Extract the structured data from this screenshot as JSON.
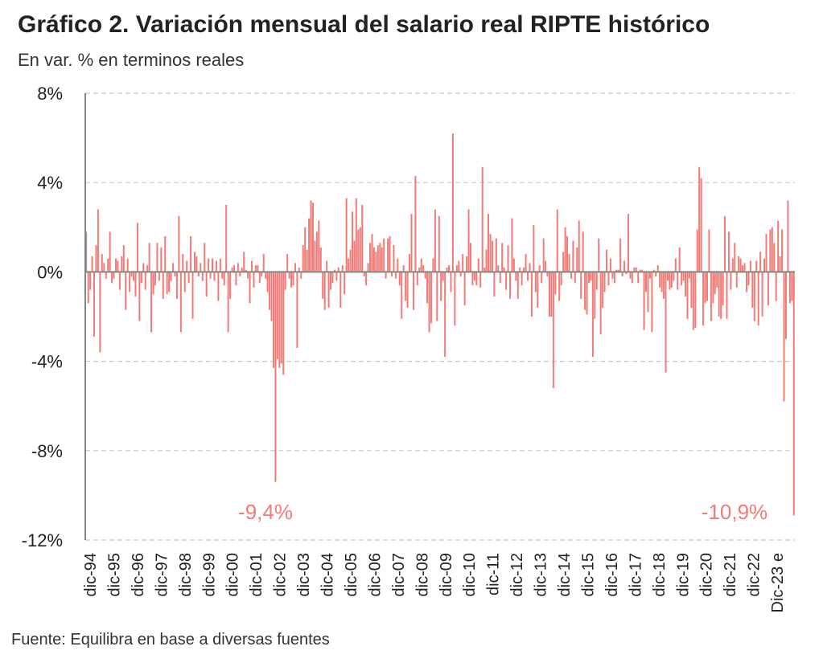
{
  "chart_data": {
    "type": "bar",
    "title": "Gráfico 2. Variación mensual del salario real RIPTE histórico",
    "subtitle": "En var. % en terminos reales",
    "source": "Fuente: Equilibra en base a diversas fuentes",
    "ylim": [
      -12,
      8
    ],
    "yticks": [
      {
        "value": 8,
        "label": "8%"
      },
      {
        "value": 4,
        "label": "4%"
      },
      {
        "value": 0,
        "label": "0%"
      },
      {
        "value": -4,
        "label": "-4%"
      },
      {
        "value": -8,
        "label": "-8%"
      },
      {
        "value": -12,
        "label": "-12%"
      }
    ],
    "grid": true,
    "bar_color": "#f47a76",
    "axis_color": "#7a8a86",
    "grid_color": "#c8c8c8",
    "xtick_labels": [
      "dic-94",
      "dic-95",
      "dic-96",
      "dic-97",
      "dic-98",
      "dic-99",
      "dic-00",
      "dic-01",
      "dic-02",
      "dic-03",
      "dic-04",
      "dic-05",
      "dic-06",
      "dic-07",
      "dic-08",
      "dic-09",
      "dic-10",
      "dic-11",
      "dic-12",
      "dic-13",
      "dic-14",
      "dic-15",
      "dic-16",
      "dic-17",
      "dic-18",
      "dic-19",
      "dic-20",
      "dic-21",
      "dic-22",
      "Dic-23 e"
    ],
    "series": [
      {
        "values": [
          1.8,
          -1.4,
          -0.8,
          0.7,
          -2.9,
          1.2,
          2.8,
          -3.6,
          0.8,
          0.4,
          -0.3,
          0.6,
          1.8,
          -0.5,
          -0.3,
          0.6,
          0.5,
          -0.8,
          0.7,
          1.2,
          -1.7,
          0.6,
          -0.9,
          -0.2,
          -0.4,
          -1.1,
          2.2,
          -2.2,
          -0.5,
          0.4,
          -0.8,
          0.3,
          1.3,
          -2.7,
          -1.0,
          -0.6,
          1.3,
          -0.4,
          1.1,
          -1.2,
          1.6,
          -1.0,
          -0.9,
          -0.4,
          0.4,
          -0.2,
          -1.2,
          2.5,
          -2.7,
          0.8,
          -0.9,
          0.5,
          -0.5,
          1.6,
          -2.1,
          0.9,
          0.7,
          -0.2,
          0.4,
          -0.4,
          1.3,
          -1.1,
          0.6,
          -0.3,
          0.6,
          -0.4,
          0.5,
          -1.3,
          0.6,
          -0.3,
          -0.6,
          3.0,
          -2.7,
          -1.2,
          0.2,
          0.3,
          -0.6,
          0.4,
          -0.2,
          0.2,
          0.9,
          0.1,
          -0.3,
          -1.4,
          0.5,
          -0.7,
          0.3,
          0.3,
          -0.5,
          -0.2,
          0.8,
          -0.3,
          -0.9,
          -1.7,
          -2.2,
          -4.3,
          -9.4,
          -3.9,
          -4.3,
          -4.1,
          -4.6,
          -0.8,
          0.8,
          -0.3,
          -0.7,
          -0.6,
          0.4,
          -3.4,
          0.2,
          -0.3,
          1.2,
          2.0,
          1.0,
          2.4,
          3.2,
          3.1,
          1.4,
          1.8,
          2.3,
          1.1,
          -1.2,
          -1.7,
          0.5,
          -1.6,
          -0.8,
          -0.5,
          0.1,
          -0.4,
          0.2,
          -1.6,
          0.3,
          -1.0,
          3.3,
          0.6,
          1.0,
          2.7,
          1.4,
          3.3,
          1.9,
          2.0,
          3.0,
          -0.2,
          -0.6,
          0.4,
          1.3,
          1.7,
          1.1,
          0.9,
          1.2,
          1.3,
          1.1,
          1.5,
          -0.3,
          1.5,
          1.6,
          -0.2,
          1.2,
          -0.3,
          0.6,
          -0.6,
          -2.1,
          0.3,
          -1.3,
          -1.6,
          0.8,
          2.6,
          -1.7,
          4.3,
          -0.6,
          0.2,
          0.6,
          0.3,
          -0.3,
          -1.4,
          -2.7,
          -2.3,
          0.6,
          2.8,
          -2.2,
          2.5,
          -1.3,
          -0.4,
          -3.8,
          0.2,
          0.3,
          -0.9,
          6.2,
          -2.4,
          0.3,
          0.5,
          -0.2,
          0.8,
          -1.5,
          0.7,
          2.8,
          1.3,
          -0.6,
          -0.4,
          -0.6,
          0.6,
          -0.7,
          4.7,
          0.2,
          1.0,
          2.6,
          1.7,
          1.4,
          -1.1,
          1.5,
          0.3,
          -0.5,
          1.3,
          0.2,
          -0.8,
          1.2,
          -1.2,
          2.4,
          0.6,
          -0.4,
          -1.2,
          0.2,
          -0.6,
          0.2,
          0.8,
          -0.4,
          0.4,
          -2.0,
          2.1,
          -0.9,
          -1.6,
          0.3,
          -0.5,
          1.5,
          0.5,
          -0.2,
          -2.0,
          -2.0,
          -5.2,
          -1.0,
          2.8,
          -1.3,
          -0.6,
          0.9,
          2.0,
          1.6,
          0.8,
          -0.3,
          1.4,
          -0.5,
          1.1,
          2.3,
          -1.2,
          1.8,
          -1.7,
          -1.9,
          -0.5,
          -0.4,
          -3.8,
          -2.1,
          -0.8,
          1.5,
          -2.8,
          -1.6,
          -0.9,
          1.0,
          -0.6,
          0.6,
          -0.3,
          -0.5,
          0.1,
          0.1,
          1.5,
          -0.2,
          0.5,
          -0.1,
          2.6,
          -0.3,
          -0.5,
          0.2,
          0.2,
          -0.5,
          0.1,
          0.1,
          -2.6,
          -0.9,
          -1.8,
          -0.3,
          -2.7,
          0.1,
          -0.2,
          0.3,
          -0.7,
          -0.9,
          -1.2,
          -4.5,
          -0.4,
          -0.8,
          -0.7,
          -0.4,
          0.6,
          -0.8,
          1.1,
          -0.6,
          -0.4,
          -1.1,
          -2.1,
          -0.3,
          -1.6,
          -2.6,
          -2.5,
          1.9,
          4.7,
          4.2,
          -2.4,
          -1.4,
          -1.3,
          1.9,
          -2.2,
          -1.4,
          -1.0,
          -0.7,
          -2.0,
          -2.1,
          -1.5,
          2.5,
          -2.1,
          1.8,
          -0.8,
          0.6,
          1.3,
          -0.7,
          0.7,
          0.6,
          0.3,
          0.4,
          -0.9,
          -0.6,
          0.5,
          -1.6,
          -2.2,
          0.5,
          -2.4,
          0.9,
          -2.0,
          0.6,
          1.7,
          -1.5,
          1.9,
          2.0,
          1.3,
          -1.3,
          2.3,
          0.7,
          1.9,
          -5.8,
          -3.0,
          3.2,
          -1.4,
          -1.3,
          -10.9
        ]
      }
    ],
    "annotations": [
      {
        "text": "-9,4%",
        "index": 96,
        "value": -9.4
      },
      {
        "text": "-10,9%",
        "index": 359,
        "value": -10.9
      }
    ]
  }
}
